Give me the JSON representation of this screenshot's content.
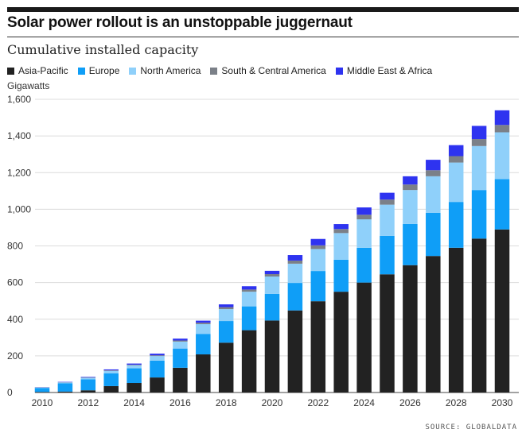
{
  "title": "Solar power rollout is an unstoppable juggernaut",
  "subtitle": "Cumulative installed capacity",
  "source": "SOURCE: GLOBALDATA",
  "colors": {
    "asia_pacific": "#222222",
    "europe": "#0f9ef7",
    "north_america": "#8fd0fa",
    "south_central_america": "#7b8088",
    "middle_east_africa": "#2e33f0"
  },
  "chart_data": {
    "type": "bar",
    "stacked": true,
    "ylabel": "Gigawatts",
    "ylim": [
      0,
      1600
    ],
    "yticks": [
      0,
      200,
      400,
      600,
      800,
      1000,
      1200,
      1400,
      1600
    ],
    "yticklabels": [
      "0",
      "200",
      "400",
      "600",
      "800",
      "1,000",
      "1,200",
      "1,400",
      "1,600"
    ],
    "xticklabels": [
      "2010",
      "2012",
      "2014",
      "2016",
      "2018",
      "2020",
      "2022",
      "2024",
      "2026",
      "2028",
      "2030"
    ],
    "categories": [
      "2010",
      "2011",
      "2012",
      "2013",
      "2014",
      "2015",
      "2016",
      "2017",
      "2018",
      "2019",
      "2020",
      "2021",
      "2022",
      "2023",
      "2024",
      "2025",
      "2026",
      "2027",
      "2028",
      "2029",
      "2030"
    ],
    "grid": true,
    "legend_position": "top-left",
    "series": [
      {
        "name": "Asia-Pacific",
        "color": "#222222",
        "values": [
          3,
          5,
          12,
          35,
          52,
          82,
          135,
          208,
          272,
          340,
          393,
          448,
          498,
          550,
          600,
          645,
          695,
          745,
          790,
          840,
          890
        ]
      },
      {
        "name": "Europe",
        "color": "#0f9ef7",
        "values": [
          22,
          45,
          60,
          70,
          80,
          92,
          105,
          112,
          118,
          130,
          145,
          150,
          165,
          175,
          190,
          210,
          225,
          235,
          250,
          265,
          275
        ]
      },
      {
        "name": "North America",
        "color": "#8fd0fa",
        "values": [
          2,
          5,
          8,
          13,
          17,
          25,
          38,
          53,
          65,
          80,
          95,
          105,
          120,
          145,
          155,
          170,
          185,
          200,
          215,
          240,
          255
        ]
      },
      {
        "name": "South & Central America",
        "color": "#7b8088",
        "values": [
          1,
          1,
          2,
          3,
          3,
          4,
          6,
          8,
          11,
          12,
          13,
          17,
          20,
          22,
          25,
          28,
          30,
          33,
          35,
          38,
          40
        ]
      },
      {
        "name": "Middle East & Africa",
        "color": "#2e33f0",
        "values": [
          1,
          2,
          3,
          5,
          6,
          9,
          10,
          11,
          15,
          18,
          18,
          30,
          35,
          27,
          40,
          37,
          45,
          57,
          60,
          72,
          80
        ]
      }
    ]
  }
}
